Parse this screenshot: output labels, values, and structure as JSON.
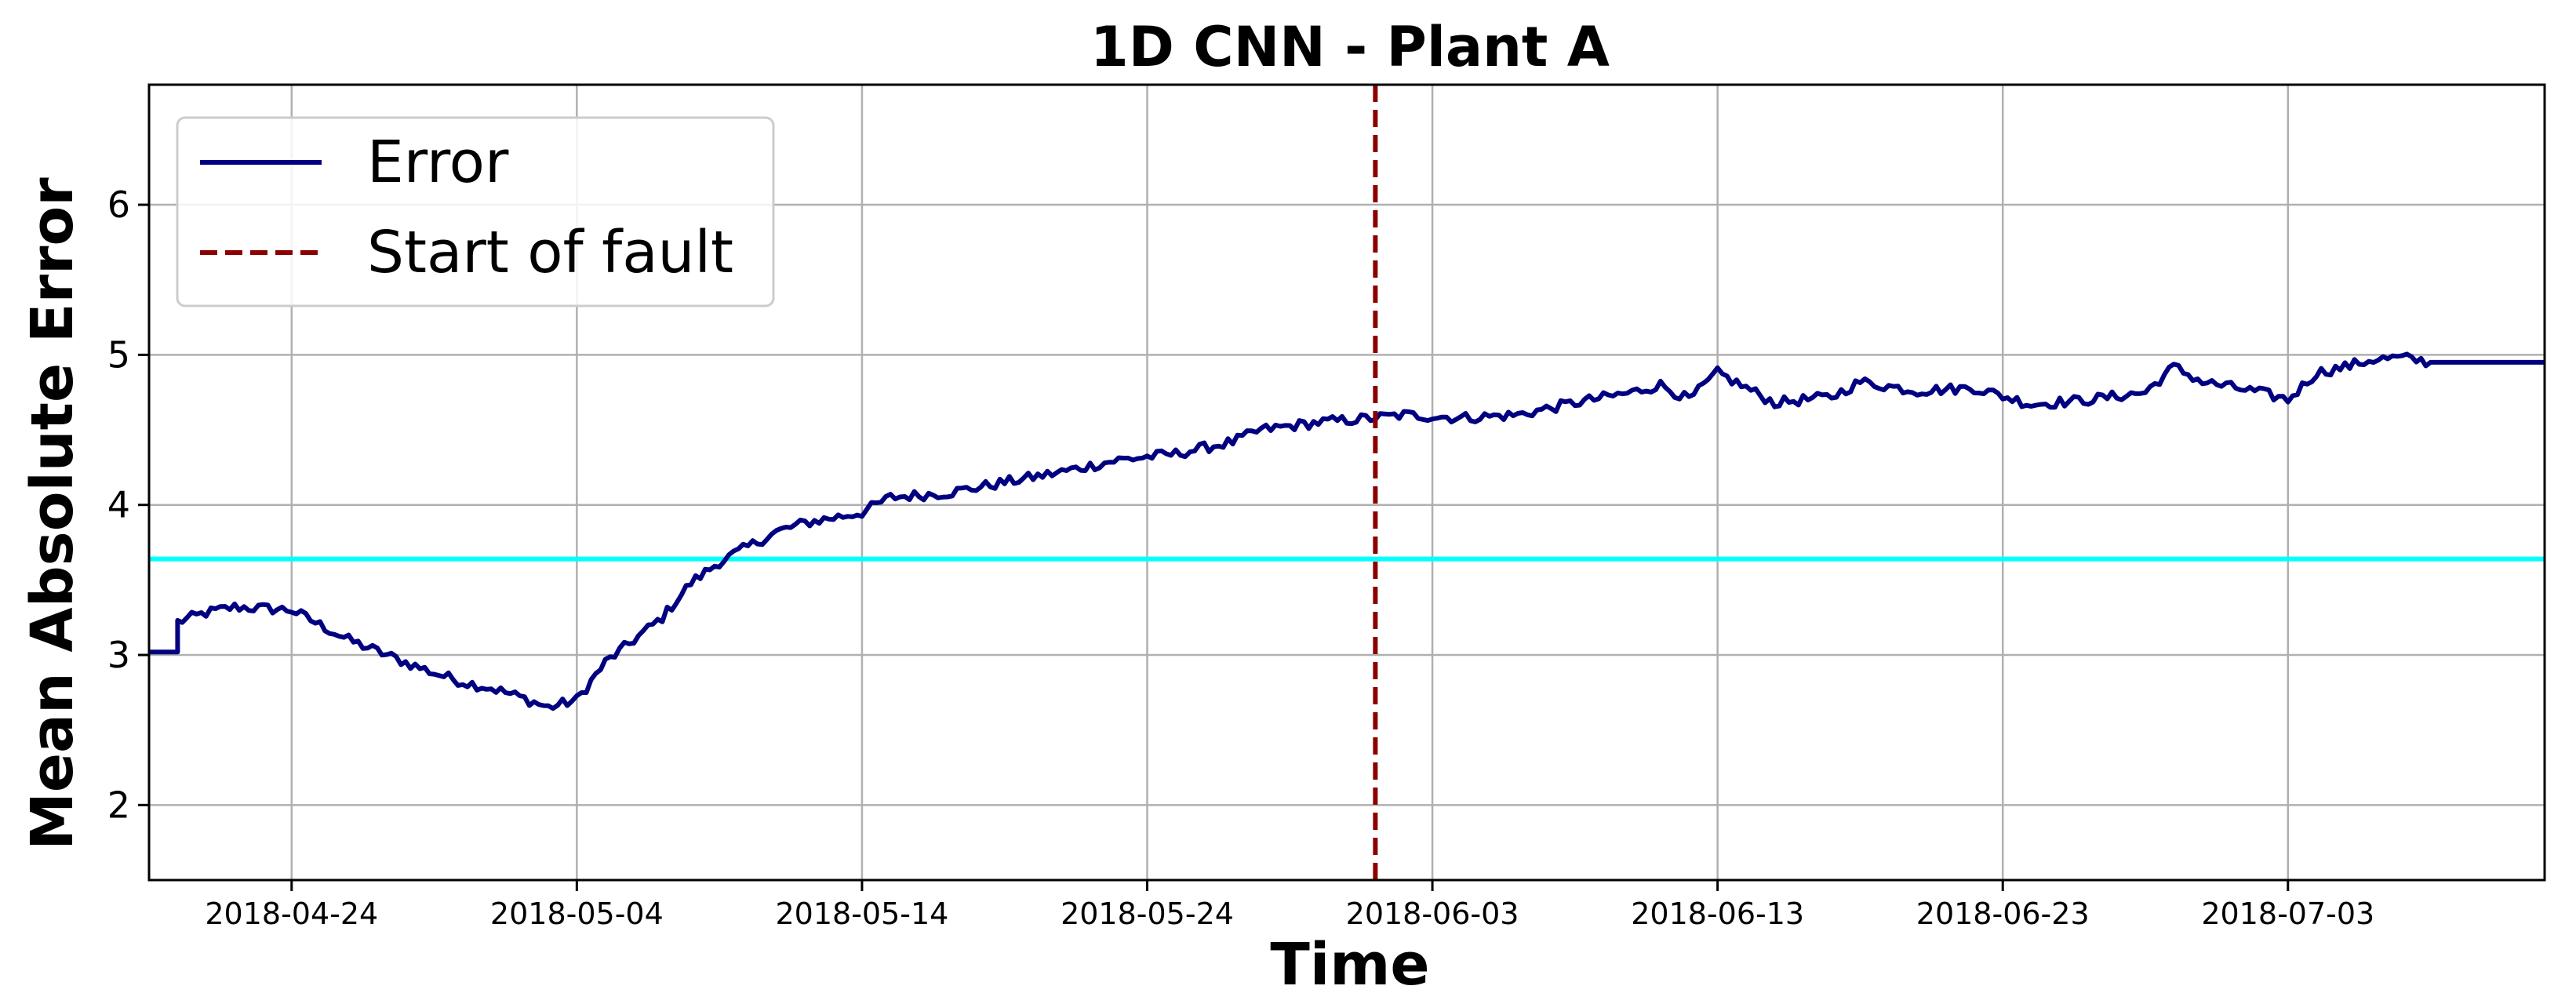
{
  "chart_data": {
    "type": "line",
    "title": "1D CNN - Plant A",
    "xlabel": "Time",
    "ylabel": "Mean Absolute Error",
    "xlim": [
      "2018-04-19",
      "2018-07-12"
    ],
    "ylim": [
      1.5,
      6.8
    ],
    "grid": true,
    "legend": {
      "placement": "top-left",
      "entries": [
        "Error",
        "Start of fault"
      ]
    },
    "x_ticks": [
      "2018-04-24",
      "2018-05-04",
      "2018-05-14",
      "2018-05-24",
      "2018-06-03",
      "2018-06-13",
      "2018-06-23",
      "2018-07-03"
    ],
    "y_ticks": [
      2,
      3,
      4,
      5,
      6
    ],
    "colors": {
      "error": "#000080",
      "fault": "#8b0000",
      "threshold": "#00ffff",
      "grid": "#b0b0b0"
    },
    "series": [
      {
        "name": "Error",
        "x": [
          "2018-04-19",
          "2018-04-20",
          "2018-04-20",
          "2018-04-21",
          "2018-04-22",
          "2018-04-24",
          "2018-04-25",
          "2018-04-26",
          "2018-04-28",
          "2018-04-29",
          "2018-04-30",
          "2018-05-01",
          "2018-05-02",
          "2018-05-03",
          "2018-05-04",
          "2018-05-05",
          "2018-05-06",
          "2018-05-07",
          "2018-05-08",
          "2018-05-09",
          "2018-05-10",
          "2018-05-11",
          "2018-05-12",
          "2018-05-14",
          "2018-05-15",
          "2018-05-17",
          "2018-05-19",
          "2018-05-21",
          "2018-05-23",
          "2018-05-25",
          "2018-05-27",
          "2018-05-28",
          "2018-05-30",
          "2018-06-01",
          "2018-06-02",
          "2018-06-04",
          "2018-06-06",
          "2018-06-08",
          "2018-06-10",
          "2018-06-11",
          "2018-06-12",
          "2018-06-13",
          "2018-06-15",
          "2018-06-17",
          "2018-06-18",
          "2018-06-20",
          "2018-06-22",
          "2018-06-24",
          "2018-06-26",
          "2018-06-28",
          "2018-06-29",
          "2018-06-30",
          "2018-07-02",
          "2018-07-03",
          "2018-07-04",
          "2018-07-05",
          "2018-07-06",
          "2018-07-07",
          "2018-07-08",
          "2018-07-12"
        ],
        "values": [
          3.02,
          3.02,
          3.22,
          3.28,
          3.32,
          3.3,
          3.2,
          3.1,
          2.95,
          2.88,
          2.82,
          2.78,
          2.72,
          2.65,
          2.7,
          2.95,
          3.1,
          3.25,
          3.48,
          3.62,
          3.72,
          3.82,
          3.88,
          3.95,
          4.05,
          4.08,
          4.15,
          4.22,
          4.3,
          4.34,
          4.42,
          4.5,
          4.55,
          4.58,
          4.6,
          4.58,
          4.6,
          4.68,
          4.75,
          4.8,
          4.7,
          4.88,
          4.68,
          4.72,
          4.82,
          4.76,
          4.78,
          4.67,
          4.7,
          4.75,
          4.92,
          4.82,
          4.75,
          4.7,
          4.88,
          4.92,
          4.97,
          4.98,
          4.95,
          4.95
        ]
      }
    ],
    "reference_lines": [
      {
        "name": "Start of fault",
        "orientation": "vertical",
        "x": "2018-06-01",
        "style": "dashed"
      },
      {
        "orientation": "horizontal",
        "y": 3.64,
        "style": "solid"
      }
    ]
  }
}
